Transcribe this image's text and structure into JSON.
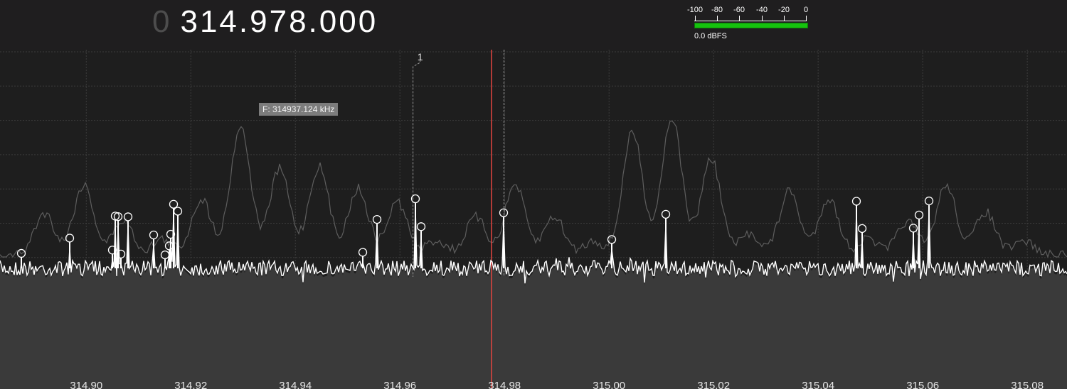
{
  "frequency": {
    "prefix": "0",
    "value": "314.978.000"
  },
  "level_meter": {
    "tick_labels": [
      "-100",
      "-80",
      "-60",
      "-40",
      "-20",
      "0"
    ],
    "readout": "0.0 dBFS",
    "bar_color": "#15c20e",
    "level_fraction": 1.0
  },
  "spectrum": {
    "x_axis_labels": [
      "314.90",
      "314.92",
      "314.94",
      "314.96",
      "314.98",
      "315.00",
      "315.02",
      "315.04",
      "315.06",
      "315.08"
    ],
    "x_range_mhz": [
      314.8835,
      315.0876
    ],
    "tuned_frequency_mhz": 314.9775,
    "marker": {
      "label": "1",
      "frequency_mhz": 314.9625
    },
    "cursor_frequency_mhz": 314.9799,
    "tooltip": "F: 314937.124 kHz",
    "colors": {
      "background": "#1e1e1e",
      "grid": "#3c3c3c",
      "noise_fill": "#3a3a3a",
      "live_trace": "#ffffff",
      "peak_hold_trace": "#5e5e5e",
      "tuned_line": "#e0443f"
    },
    "peak_hold_maxima_mhz": [
      314.9345,
      315.014,
      314.9795
    ],
    "peak_markers_mhz": [
      314.8875,
      314.8969,
      314.905,
      314.9055,
      314.9062,
      314.9067,
      314.908,
      314.9128,
      314.915,
      314.9158,
      314.9161,
      314.9167,
      314.9175,
      314.9528,
      314.9556,
      314.9629,
      314.964,
      314.9799,
      315.0004,
      315.0108,
      315.0474,
      315.0485,
      315.0583,
      315.0593,
      315.0613
    ]
  }
}
